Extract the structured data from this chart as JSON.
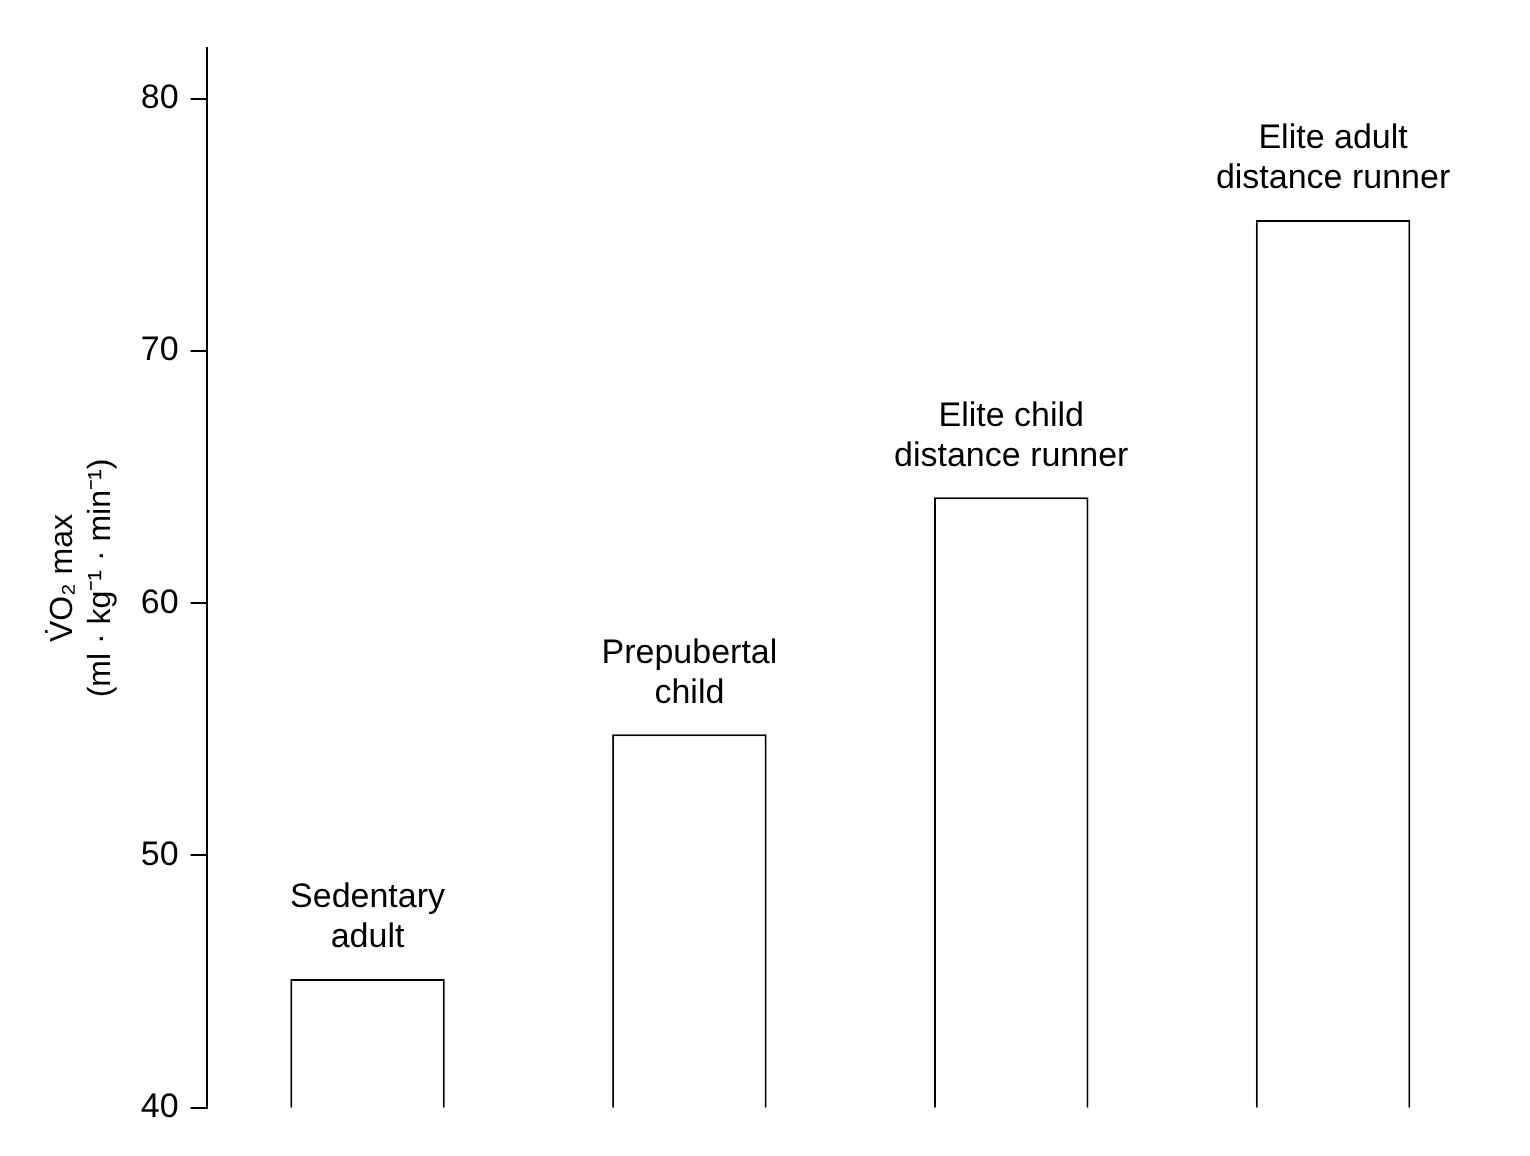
{
  "chart_data": {
    "type": "bar",
    "ylabel": "V̇O₂ max\n(ml · kg⁻¹ · min⁻¹)",
    "categories": [
      "Sedentary adult",
      "Prepubertal child",
      "Elite child distance runner",
      "Elite adult distance runner"
    ],
    "values": [
      45.1,
      54.8,
      64.2,
      75.2
    ],
    "color": "#ffffff",
    "ylim": [
      40,
      82
    ],
    "yticks": [
      40,
      50,
      60,
      70,
      80
    ],
    "grid": false,
    "legend": false
  }
}
